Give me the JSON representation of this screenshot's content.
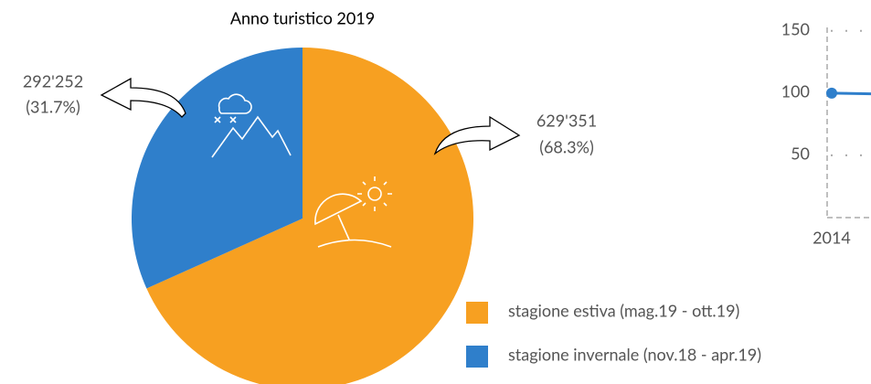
{
  "chart_data": [
    {
      "type": "pie",
      "title": "Anno turistico 2019",
      "categories": [
        "stagione estiva (mag.19 - ott.19)",
        "stagione invernale (nov.18 - apr.19)"
      ],
      "values": [
        629351,
        292252
      ],
      "value_labels": [
        "629'351",
        "292'252"
      ],
      "percentages": [
        68.3,
        31.7
      ],
      "percentage_labels": [
        "(68.3%)",
        "(31.7%)"
      ],
      "colors": [
        "#f7a021",
        "#2f7fcb"
      ]
    },
    {
      "type": "line",
      "categories": [
        "2014",
        null
      ],
      "series": [
        {
          "color": "#2f7fcb",
          "values": [
            100,
            99
          ]
        }
      ],
      "ylim": [
        0,
        155
      ],
      "yticks": [
        50,
        100,
        150
      ],
      "grid": true
    }
  ]
}
